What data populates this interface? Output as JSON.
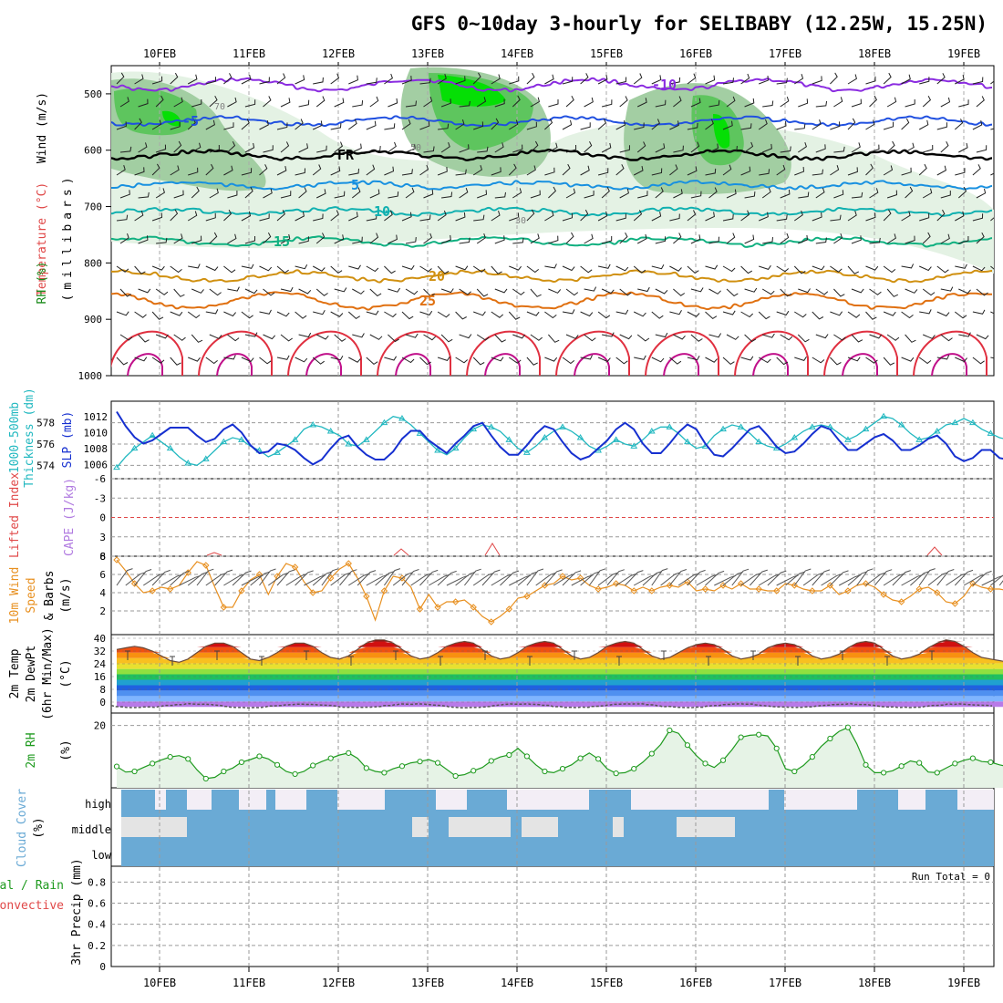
{
  "title": "GFS 0~10day 3-hourly for SELIBABY (12.25W, 15.25N)",
  "dates": [
    "10FEB",
    "11FEB",
    "12FEB",
    "13FEB",
    "14FEB",
    "15FEB",
    "16FEB",
    "17FEB",
    "18FEB",
    "19FEB"
  ],
  "colors": {
    "grid": "#9a9a9a",
    "rh_light": "#e3f1e3",
    "rh_mid": "#9ecb9e",
    "rh_high": "#5bc45b",
    "rh_max": "#00e000",
    "thickness": "#22b8c0",
    "slp": "#1630d0",
    "wind": "#e89020",
    "rh2m": "#1e9a1e",
    "rh2m_fill": "#e6f3e6",
    "cloud": "#6aaad5",
    "cloud_clear": "#f3eef6",
    "cloud_partial": "#e4e4e4",
    "temp_iso": "#e04848",
    "dewpt": "#a070e0"
  },
  "panels": {
    "upper": {
      "labels": [
        "Wind (m/s)",
        "Temperature (°C)",
        "RH (%)",
        "(millibars)"
      ],
      "y_ticks": [
        "500",
        "600",
        "700",
        "800",
        "900",
        "1000"
      ],
      "isotherms": [
        {
          "label": "-10",
          "color": "#8a2be0"
        },
        {
          "label": "-5",
          "color": "#2050e0"
        },
        {
          "label": "FR",
          "color": "#000000"
        },
        {
          "label": "5",
          "color": "#1890e0"
        },
        {
          "label": "10",
          "color": "#10b0b0"
        },
        {
          "label": "15",
          "color": "#10b080"
        },
        {
          "label": "20",
          "color": "#d09010"
        },
        {
          "label": "25",
          "color": "#e07010"
        }
      ],
      "rh_contour_labels": [
        "30",
        "50",
        "70"
      ]
    },
    "thickness": {
      "labels": [
        "1000-500mb",
        "Thickness (dm)",
        "SLP (mb)"
      ],
      "left_ticks": [
        "578",
        "576",
        "574"
      ],
      "right_ticks": [
        "1012",
        "1010",
        "1008",
        "1006"
      ]
    },
    "stability": {
      "labels": [
        "Lifted Index",
        "CAPE (J/kg)"
      ],
      "y_ticks": [
        "-6",
        "-3",
        "0",
        "3",
        "6"
      ]
    },
    "wind10m": {
      "labels": [
        "10m Wind",
        "Speed",
        "& Barbs",
        "(m/s)"
      ],
      "y_ticks": [
        "8",
        "6",
        "4",
        "2"
      ]
    },
    "temp2m": {
      "labels": [
        "2m Temp",
        "2m DewPt",
        "(6hr Min/Max)",
        "(°C)"
      ],
      "y_ticks": [
        "40",
        "32",
        "24",
        "16",
        "8",
        "0"
      ]
    },
    "rh2m": {
      "labels": [
        "2m RH",
        "(%)"
      ],
      "y_ticks": [
        "20"
      ]
    },
    "cloud": {
      "labels": [
        "Cloud Cover",
        "(%)"
      ],
      "levels": [
        "high",
        "middle",
        "low"
      ]
    },
    "precip": {
      "labels": [
        "Total / Rain",
        "Convective",
        "3hr Precip (mm)"
      ],
      "y_ticks": [
        "0.8",
        "0.6",
        "0.4",
        "0.2",
        "0"
      ],
      "run_total": "Run Total = 0"
    }
  },
  "chart_data": {
    "type": "line",
    "title": "GFS 0~10day 3-hourly for SELIBABY (12.25W, 15.25N)",
    "x_start": "09FEB 12Z",
    "x_step_hours": 3,
    "x_tick_labels": [
      "10FEB",
      "11FEB",
      "12FEB",
      "13FEB",
      "14FEB",
      "15FEB",
      "16FEB",
      "17FEB",
      "18FEB",
      "19FEB"
    ],
    "thickness_dm": [
      573.8,
      574.8,
      575.6,
      576.2,
      576.8,
      576.2,
      575.6,
      574.8,
      574.2,
      574.0,
      574.6,
      575.4,
      576.2,
      576.6,
      576.4,
      575.8,
      575.4,
      574.8,
      575.2,
      575.8,
      576.4,
      577.4,
      577.8,
      577.6,
      577.2,
      576.8,
      576.0,
      575.8,
      576.4,
      577.2,
      578.0,
      578.6,
      578.4,
      577.8,
      577.0,
      576.2,
      575.4,
      575.0,
      575.6,
      576.6,
      577.4,
      577.8,
      577.6,
      577.2,
      576.4,
      575.6,
      575.2,
      575.8,
      576.6,
      577.2,
      577.6,
      577.2,
      576.6,
      575.8,
      575.4,
      575.8,
      576.4,
      576.0,
      575.8,
      576.4,
      577.2,
      577.6,
      577.6,
      577.0,
      576.2,
      575.6,
      575.8,
      576.8,
      577.4,
      577.8,
      577.6,
      577.0,
      576.2,
      575.8,
      575.6,
      576.0,
      576.6,
      577.2,
      577.6,
      577.8,
      577.6,
      577.0,
      576.4,
      576.8,
      577.4,
      578.0,
      578.6,
      578.4,
      577.8,
      577.0,
      576.4,
      576.6,
      577.2,
      577.8,
      578.0,
      578.4,
      578.0,
      577.4,
      577.0,
      576.6,
      576.4
    ],
    "slp_mb": [
      1012.6,
      1010.8,
      1009.4,
      1008.6,
      1009.0,
      1009.8,
      1010.6,
      1010.6,
      1010.6,
      1009.6,
      1008.8,
      1009.2,
      1010.4,
      1011.0,
      1010.0,
      1008.4,
      1007.4,
      1007.6,
      1008.6,
      1008.4,
      1007.8,
      1006.8,
      1006.0,
      1006.6,
      1008.0,
      1009.2,
      1009.6,
      1008.2,
      1007.2,
      1006.6,
      1006.6,
      1007.6,
      1009.2,
      1010.2,
      1010.2,
      1009.0,
      1008.2,
      1007.4,
      1008.6,
      1009.6,
      1010.8,
      1011.2,
      1009.6,
      1008.2,
      1007.2,
      1007.2,
      1008.4,
      1009.8,
      1010.8,
      1010.4,
      1008.8,
      1007.4,
      1006.6,
      1007.0,
      1008.0,
      1009.0,
      1010.4,
      1011.2,
      1010.4,
      1008.6,
      1007.4,
      1007.4,
      1008.6,
      1010.0,
      1011.0,
      1010.4,
      1008.6,
      1007.2,
      1007.0,
      1008.0,
      1009.2,
      1010.4,
      1010.8,
      1009.6,
      1008.2,
      1007.4,
      1007.6,
      1008.6,
      1009.8,
      1010.8,
      1010.4,
      1009.0,
      1007.8,
      1007.8,
      1008.6,
      1009.4,
      1009.8,
      1009.0,
      1007.8,
      1007.8,
      1008.4,
      1009.2,
      1009.6,
      1008.6,
      1007.0,
      1006.4,
      1006.8,
      1007.8,
      1007.8,
      1006.8,
      1006.6
    ],
    "wind_speed_ms": [
      7.6,
      6.4,
      5.0,
      4.0,
      4.2,
      4.6,
      4.4,
      4.8,
      6.2,
      7.4,
      7.0,
      4.6,
      2.4,
      2.4,
      4.2,
      5.4,
      6.0,
      3.8,
      5.8,
      7.2,
      6.8,
      5.2,
      4.0,
      4.2,
      5.6,
      6.6,
      7.2,
      5.6,
      3.6,
      1.0,
      4.2,
      5.8,
      5.6,
      4.6,
      2.2,
      3.8,
      2.4,
      3.0,
      3.0,
      3.2,
      2.4,
      1.4,
      0.8,
      1.4,
      2.2,
      3.4,
      3.6,
      4.2,
      4.8,
      5.0,
      5.8,
      5.4,
      5.6,
      4.8,
      4.4,
      4.6,
      5.0,
      4.8,
      4.2,
      4.6,
      4.2,
      4.6,
      4.8,
      4.6,
      5.2,
      4.2,
      4.4,
      4.2,
      4.8,
      4.4,
      5.0,
      4.4,
      4.4,
      4.2,
      4.2,
      5.0,
      4.8,
      4.4,
      4.2,
      4.2,
      4.8,
      3.8,
      4.2,
      4.8,
      5.0,
      4.6,
      3.8,
      3.2,
      3.0,
      3.6,
      4.4,
      4.6,
      4.0,
      3.0,
      2.8,
      3.6,
      5.0,
      4.6,
      4.4,
      4.4,
      4.2
    ],
    "rh2m_pct": [
      7.5,
      5.8,
      6.0,
      7.2,
      8.4,
      9.5,
      10.4,
      10.8,
      9.8,
      6.5,
      3.8,
      4.2,
      6.0,
      7.0,
      8.8,
      9.6,
      10.6,
      9.8,
      8.0,
      6.0,
      5.2,
      6.0,
      7.8,
      9.0,
      10.0,
      11.0,
      11.6,
      10.0,
      7.0,
      6.0,
      5.6,
      6.8,
      7.6,
      8.6,
      9.0,
      9.6,
      8.6,
      6.6,
      4.6,
      5.0,
      6.2,
      7.2,
      9.2,
      10.4,
      11.0,
      13.0,
      10.6,
      8.0,
      6.0,
      5.6,
      6.8,
      8.0,
      10.0,
      11.6,
      9.8,
      6.8,
      5.4,
      5.6,
      6.8,
      8.8,
      11.4,
      14.2,
      18.5,
      17.6,
      14.0,
      10.8,
      8.4,
      7.2,
      9.4,
      12.6,
      16.4,
      17.0,
      17.2,
      16.8,
      13.0,
      6.8,
      6.0,
      7.8,
      10.4,
      13.6,
      16.0,
      18.2,
      19.4,
      14.4,
      8.0,
      5.6,
      5.6,
      6.2,
      7.6,
      9.2,
      8.6,
      5.8,
      5.6,
      7.0,
      8.4,
      9.4,
      10.0,
      9.0,
      8.8,
      8.0,
      7.4
    ],
    "temp2m_c": [
      33,
      34,
      35,
      34,
      32,
      29,
      26,
      25,
      27,
      31,
      35,
      37,
      37,
      35,
      31,
      27,
      26,
      28,
      31,
      35,
      37,
      37,
      35,
      31,
      28,
      27,
      29,
      33,
      37,
      39,
      39,
      37,
      33,
      29,
      27,
      28,
      31,
      35,
      37,
      38,
      37,
      33,
      29,
      27,
      28,
      31,
      35,
      37,
      38,
      37,
      33,
      29,
      27,
      28,
      31,
      35,
      37,
      38,
      37,
      33,
      29,
      27,
      28,
      31,
      34,
      36,
      37,
      36,
      33,
      29,
      27,
      28,
      30,
      34,
      36,
      37,
      36,
      33,
      29,
      27,
      28,
      30,
      34,
      37,
      38,
      37,
      33,
      29,
      27,
      28,
      30,
      34,
      37,
      39,
      38,
      35,
      31,
      28,
      27,
      26,
      25
    ],
    "ylabel_upper": "(millibars)"
  }
}
